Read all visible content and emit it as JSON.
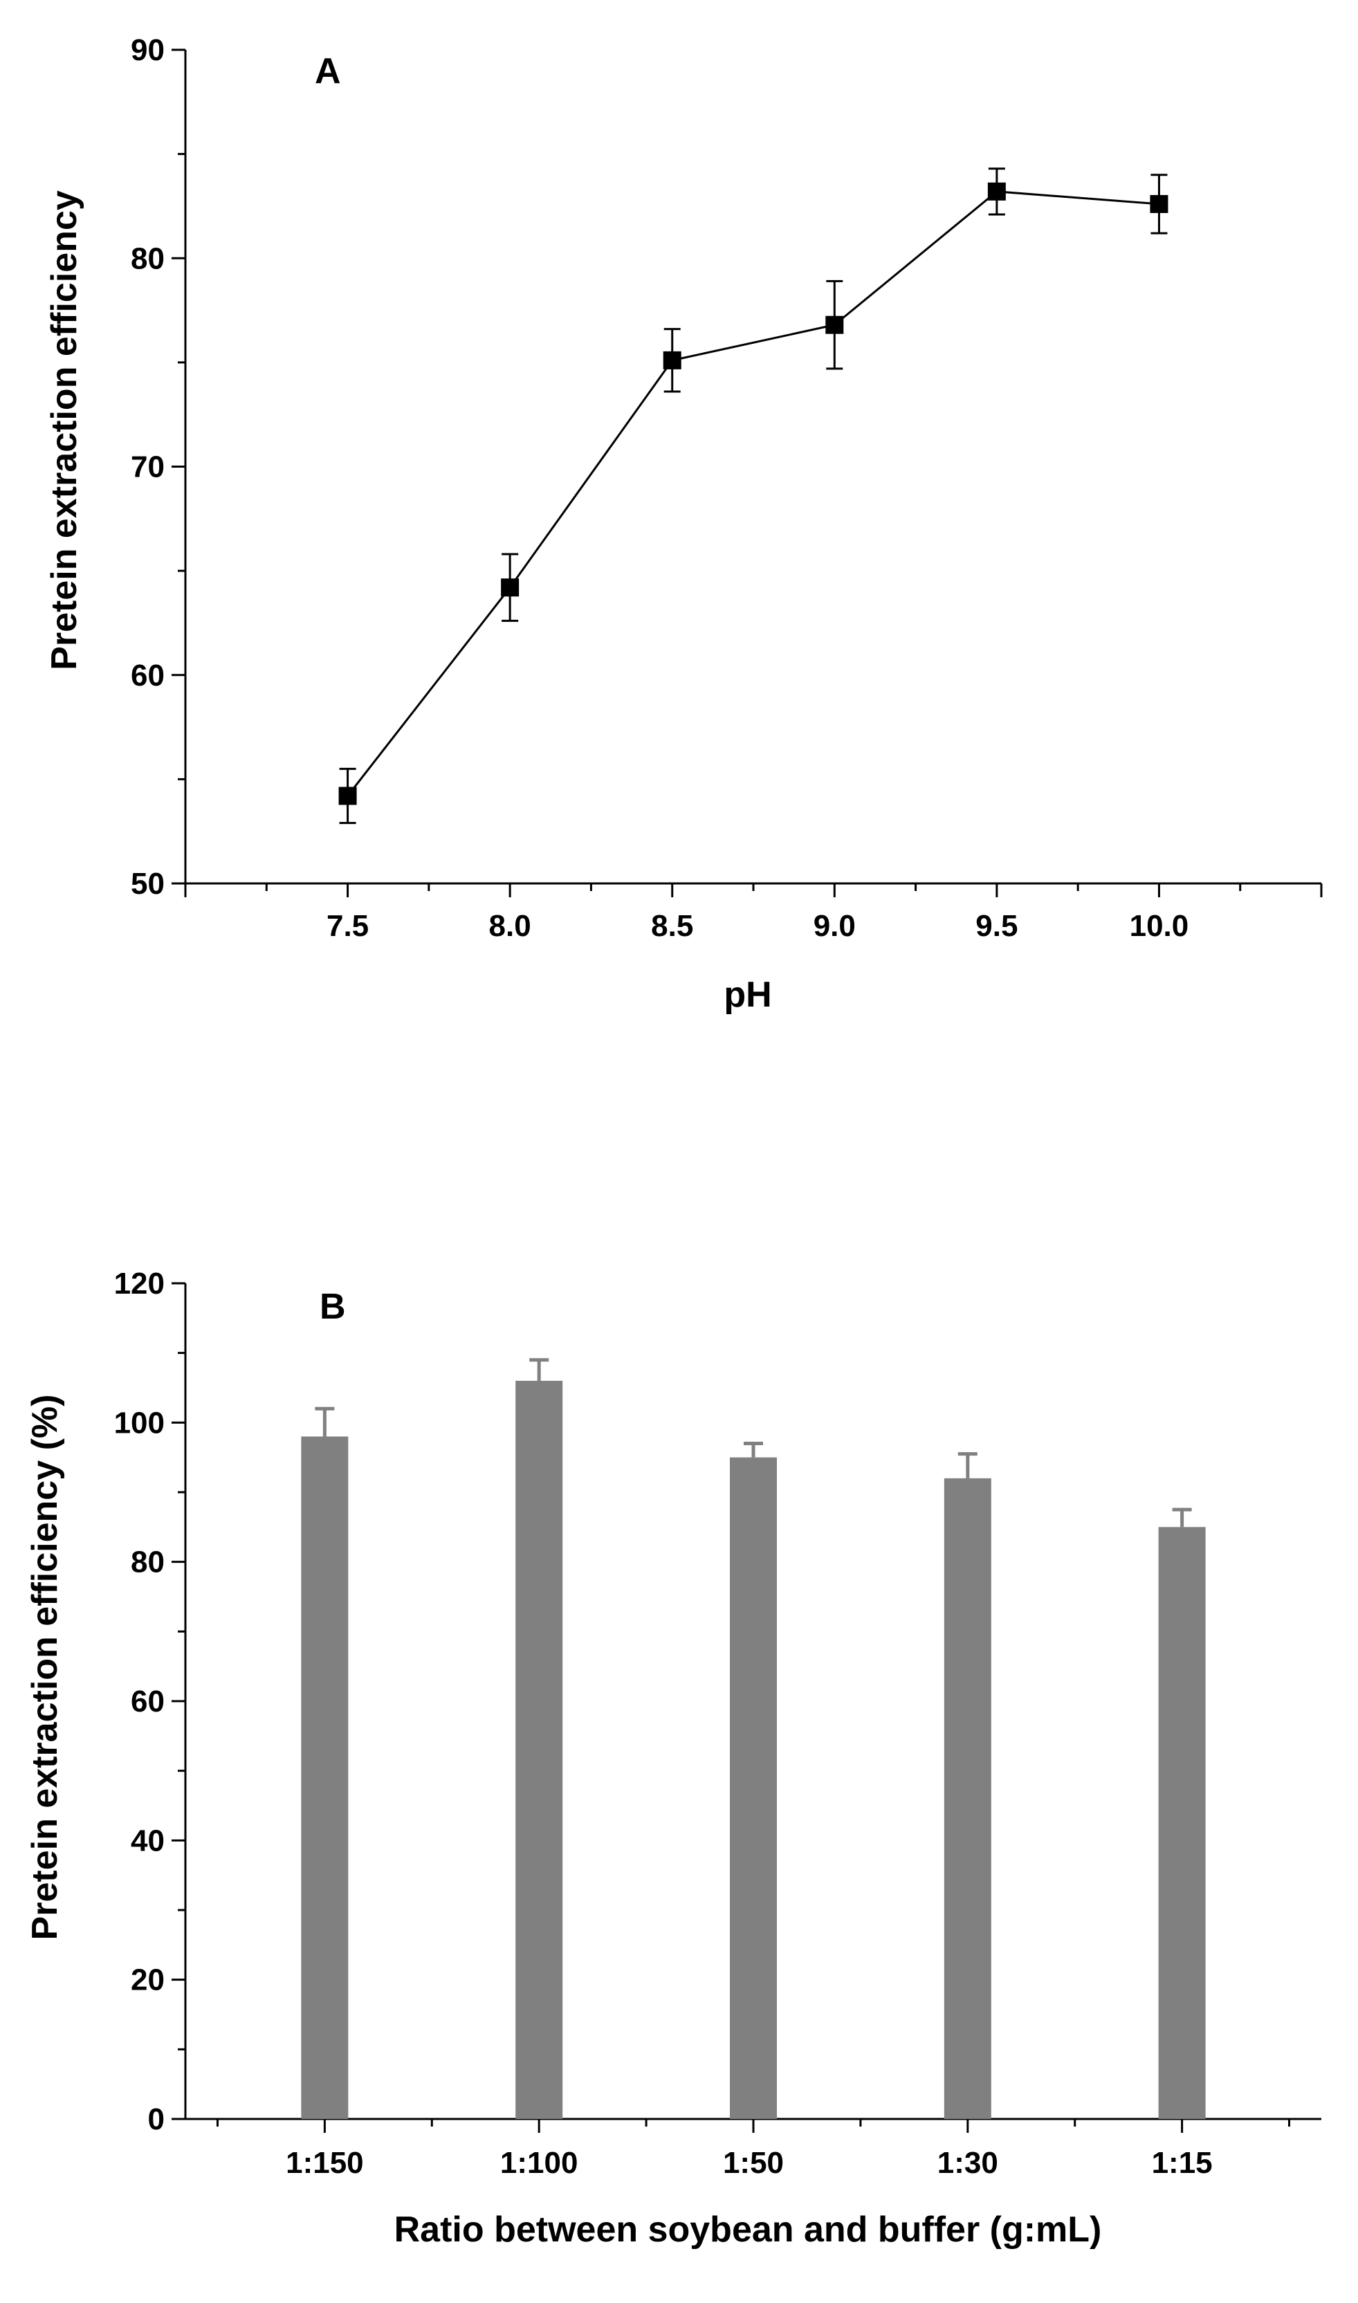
{
  "chart_data": [
    {
      "type": "line",
      "panel_label": "A",
      "xlabel": "pH",
      "ylabel": "Pretein extraction efficiency",
      "x": [
        7.5,
        8.0,
        8.5,
        9.0,
        9.5,
        10.0
      ],
      "x_tick_labels": [
        "7.5",
        "8.0",
        "8.5",
        "9.0",
        "9.5",
        "10.0"
      ],
      "values": [
        54.2,
        64.2,
        75.1,
        76.8,
        83.2,
        82.6
      ],
      "errors": [
        1.3,
        1.6,
        1.5,
        2.1,
        1.1,
        1.4
      ],
      "xlim": [
        7.0,
        10.5
      ],
      "ylim": [
        50,
        90
      ],
      "y_ticks": [
        50,
        60,
        70,
        80,
        90
      ],
      "y_tick_labels": [
        "50",
        "60",
        "70",
        "80",
        "90"
      ],
      "marker": "square",
      "grid": false,
      "color": "#000000"
    },
    {
      "type": "bar",
      "panel_label": "B",
      "xlabel": "Ratio between soybean and buffer (g:mL)",
      "ylabel": "Pretein extraction efficiency (%)",
      "categories": [
        "1:150",
        "1:100",
        "1:50",
        "1:30",
        "1:15"
      ],
      "values": [
        98,
        106,
        95,
        92,
        85
      ],
      "errors": [
        4,
        3,
        2,
        3.5,
        2.5
      ],
      "ylim": [
        0,
        120
      ],
      "y_ticks": [
        0,
        20,
        40,
        60,
        80,
        100,
        120
      ],
      "y_tick_labels": [
        "0",
        "20",
        "40",
        "60",
        "80",
        "100",
        "120"
      ],
      "grid": false,
      "color": "#808080"
    }
  ]
}
